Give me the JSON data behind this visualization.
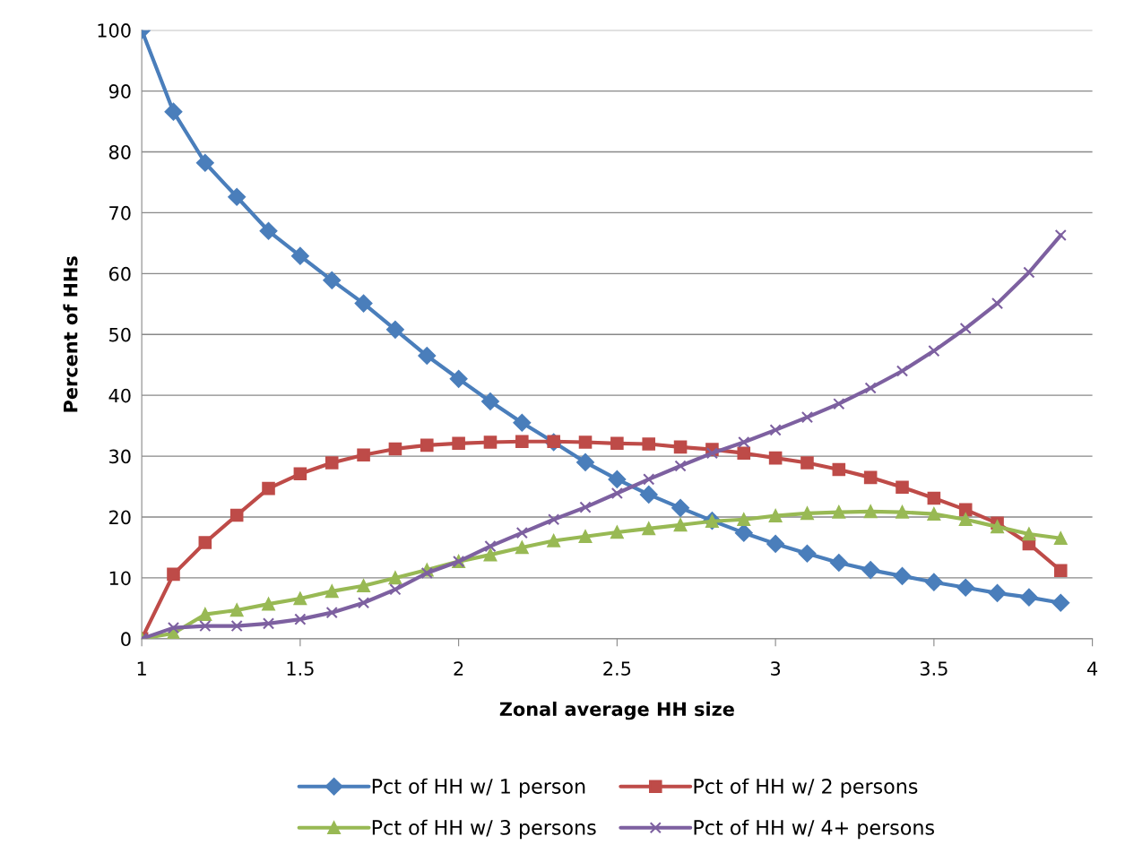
{
  "chart_data": {
    "type": "line",
    "xlabel": "Zonal average HH size",
    "ylabel": "Percent of HHs",
    "x": [
      1.0,
      1.1,
      1.2,
      1.3,
      1.4,
      1.5,
      1.6,
      1.7,
      1.8,
      1.9,
      2.0,
      2.1,
      2.2,
      2.3,
      2.4,
      2.5,
      2.6,
      2.7,
      2.8,
      2.9,
      3.0,
      3.1,
      3.2,
      3.3,
      3.4,
      3.5,
      3.6,
      3.7,
      3.8,
      3.9
    ],
    "series": [
      {
        "name": "Pct of HH w/ 1 person",
        "color": "#4a7ebb",
        "marker": "diamond",
        "values": [
          100,
          86.6,
          78.2,
          72.6,
          67.0,
          62.9,
          58.9,
          55.1,
          50.8,
          46.5,
          42.7,
          39.0,
          35.5,
          32.3,
          29.0,
          26.2,
          23.7,
          21.5,
          19.4,
          17.4,
          15.6,
          14.0,
          12.5,
          11.3,
          10.3,
          9.3,
          8.4,
          7.5,
          6.8,
          5.9
        ]
      },
      {
        "name": "Pct of HH w/ 2 persons",
        "color": "#be4b48",
        "marker": "square",
        "values": [
          0,
          10.6,
          15.8,
          20.3,
          24.7,
          27.1,
          28.9,
          30.2,
          31.2,
          31.8,
          32.1,
          32.3,
          32.4,
          32.4,
          32.3,
          32.1,
          32.0,
          31.5,
          31.1,
          30.5,
          29.7,
          28.9,
          27.8,
          26.5,
          24.9,
          23.1,
          21.2,
          19.0,
          15.6,
          11.2
        ]
      },
      {
        "name": "Pct of HH w/ 3 persons",
        "color": "#98b954",
        "marker": "triangle",
        "values": [
          0,
          0.9,
          4.0,
          4.7,
          5.7,
          6.6,
          7.8,
          8.7,
          10.0,
          11.3,
          12.7,
          13.8,
          15.0,
          16.1,
          16.8,
          17.5,
          18.1,
          18.7,
          19.3,
          19.6,
          20.2,
          20.6,
          20.8,
          20.9,
          20.8,
          20.5,
          19.6,
          18.4,
          17.2,
          16.5
        ]
      },
      {
        "name": "Pct of HH w/ 4+ persons",
        "color": "#7d60a0",
        "marker": "cross",
        "values": [
          0,
          1.8,
          2.1,
          2.1,
          2.5,
          3.2,
          4.3,
          5.9,
          8.1,
          10.8,
          12.7,
          15.2,
          17.4,
          19.6,
          21.6,
          23.9,
          26.2,
          28.4,
          30.5,
          32.3,
          34.3,
          36.4,
          38.6,
          41.2,
          44.0,
          47.3,
          51.0,
          55.1,
          60.2,
          66.3
        ]
      }
    ],
    "xlim": [
      1,
      4
    ],
    "xticks": [
      1,
      1.5,
      2,
      2.5,
      3,
      3.5,
      4
    ],
    "ylim": [
      0,
      100
    ],
    "yticks": [
      0,
      10,
      20,
      30,
      40,
      50,
      60,
      70,
      80,
      90,
      100
    ],
    "grid": "y",
    "legend": "bottom",
    "line_style": "solid"
  }
}
